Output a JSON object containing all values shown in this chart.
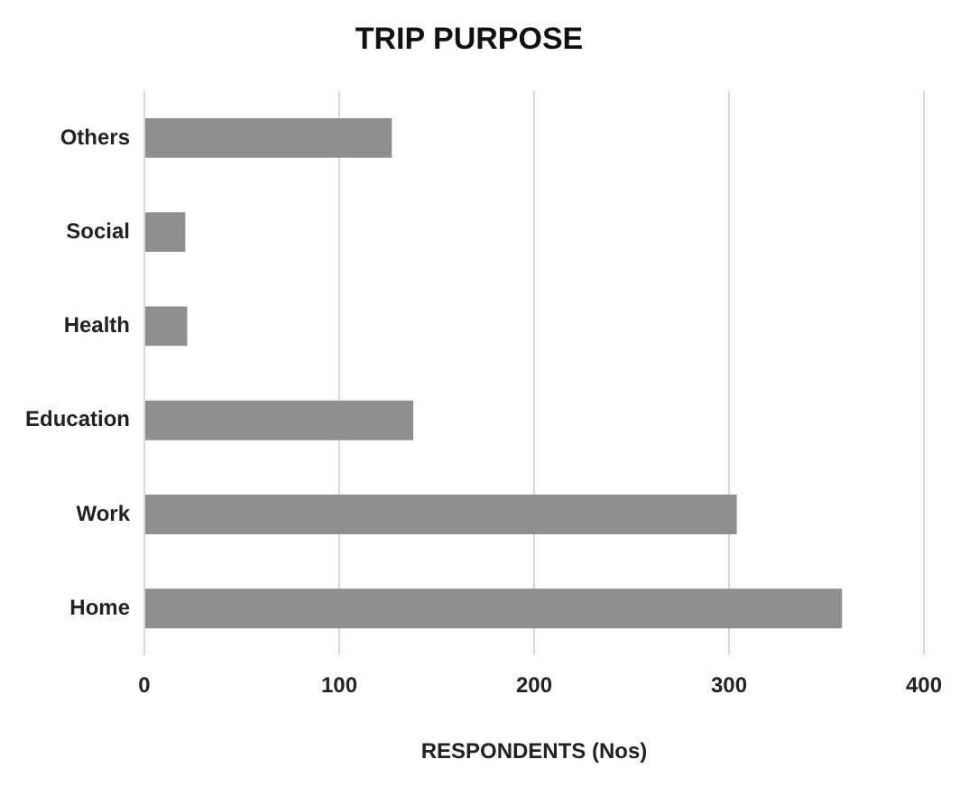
{
  "chart_data": {
    "type": "bar",
    "orientation": "horizontal",
    "title": "TRIP PURPOSE",
    "xlabel": "RESPONDENTS (Nos)",
    "categories": [
      "Others",
      "Social",
      "Health",
      "Education",
      "Work",
      "Home"
    ],
    "values": [
      127,
      21,
      22,
      138,
      304,
      358
    ],
    "color": "#8f8f8f",
    "xlim": [
      0,
      400
    ],
    "xticks": [
      0,
      100,
      200,
      300,
      400
    ],
    "grid": "x",
    "legend": false
  }
}
